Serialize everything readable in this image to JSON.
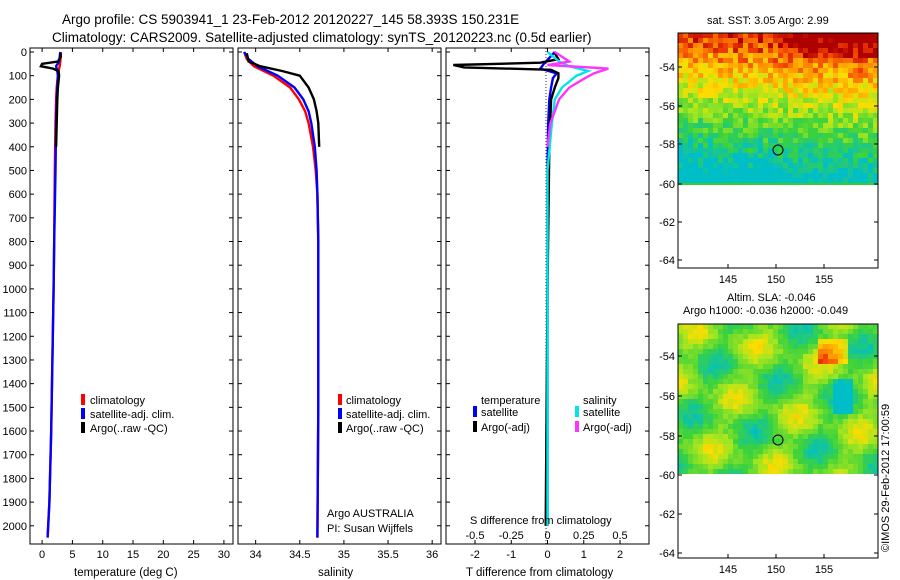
{
  "title": {
    "line1": "Argo profile: CS 5903941_1 23-Feb-2012 20120227_145 58.393S 150.231E",
    "line2": "Climatology: CARS2009. Satellite-adjusted climatology: synTS_20120223.nc (0.5d earlier)"
  },
  "colors": {
    "climatology": "#ff0000",
    "satellite": "#0000ff",
    "argo": "#000000",
    "sal_satellite": "#00e5e5",
    "sal_argo": "#ff33ff"
  },
  "depth_ticks": [
    "0",
    "100",
    "200",
    "300",
    "400",
    "500",
    "600",
    "700",
    "800",
    "900",
    "1000",
    "1100",
    "1200",
    "1300",
    "1400",
    "1500",
    "1600",
    "1700",
    "1800",
    "1900",
    "2000"
  ],
  "chart_data": [
    {
      "type": "line",
      "name": "temperature",
      "xlabel": "temperature (deg C)",
      "xlim": [
        -2,
        31.5
      ],
      "ylim": [
        2060,
        0
      ],
      "x_tick_labels": [
        "0",
        "5",
        "10",
        "15",
        "20",
        "25",
        "30"
      ],
      "legend": [
        "climatology",
        "satellite-adj. clim.",
        "Argo(..raw -QC)"
      ],
      "series": [
        {
          "name": "climatology",
          "color": "#ff0000",
          "depth": [
            0,
            40,
            60,
            80,
            100,
            150,
            200,
            300,
            500,
            800,
            1000,
            1300,
            1600,
            1900,
            2050
          ],
          "values": [
            3.1,
            3.0,
            2.9,
            2.7,
            2.6,
            2.4,
            2.3,
            2.2,
            2.1,
            2.0,
            1.9,
            1.7,
            1.5,
            1.2,
            0.9
          ]
        },
        {
          "name": "satellite-adj. clim.",
          "color": "#0000ff",
          "depth": [
            0,
            40,
            60,
            80,
            100,
            150,
            200,
            300,
            500,
            800,
            1000,
            1300,
            1600,
            1900,
            2050
          ],
          "values": [
            3.0,
            2.8,
            2.3,
            2.5,
            2.6,
            2.5,
            2.4,
            2.3,
            2.2,
            2.0,
            1.9,
            1.7,
            1.5,
            1.2,
            0.9
          ]
        },
        {
          "name": "Argo(..raw -QC)",
          "color": "#000000",
          "depth": [
            5,
            20,
            40,
            50,
            60,
            70,
            80,
            100,
            150,
            200,
            300,
            400
          ],
          "values": [
            3.0,
            3.1,
            2.6,
            0.0,
            -0.2,
            1.8,
            2.7,
            2.8,
            2.6,
            2.5,
            2.4,
            2.3
          ]
        }
      ]
    },
    {
      "type": "line",
      "name": "salinity",
      "xlabel": "salinity",
      "xlim": [
        33.8,
        36.1
      ],
      "ylim": [
        2060,
        0
      ],
      "x_tick_labels": [
        "34",
        "34.5",
        "35",
        "35.5",
        "36"
      ],
      "legend": [
        "climatology",
        "satellite-adj. clim.",
        "Argo(..raw -QC)"
      ],
      "annotation": [
        "Argo AUSTRALIA",
        "PI: Susan Wijffels"
      ],
      "series": [
        {
          "name": "climatology",
          "color": "#ff0000",
          "depth": [
            0,
            30,
            60,
            100,
            150,
            200,
            250,
            300,
            400,
            500,
            600,
            800,
            1000,
            1500,
            2050
          ],
          "values": [
            33.87,
            33.9,
            33.98,
            34.2,
            34.39,
            34.49,
            34.56,
            34.6,
            34.65,
            34.68,
            34.7,
            34.71,
            34.71,
            34.71,
            34.7
          ]
        },
        {
          "name": "satellite-adj. clim.",
          "color": "#0000ff",
          "depth": [
            0,
            30,
            60,
            100,
            150,
            200,
            250,
            300,
            400,
            500,
            600,
            800,
            1000,
            1500,
            2050
          ],
          "values": [
            33.87,
            33.92,
            34.02,
            34.25,
            34.44,
            34.54,
            34.6,
            34.63,
            34.67,
            34.69,
            34.7,
            34.71,
            34.71,
            34.71,
            34.7
          ]
        },
        {
          "name": "Argo(..raw -QC)",
          "color": "#000000",
          "depth": [
            5,
            40,
            60,
            80,
            100,
            150,
            200,
            250,
            300,
            400
          ],
          "values": [
            33.9,
            33.92,
            34.05,
            34.3,
            34.5,
            34.6,
            34.66,
            34.69,
            34.71,
            34.72
          ]
        }
      ]
    },
    {
      "type": "line",
      "name": "difference",
      "xlabel": "T difference from climatology",
      "xlabel_top": "S difference from climatology",
      "xlim_T": [
        -2.8,
        2.8
      ],
      "x_tick_labels_T": [
        "-2",
        "-1",
        "0",
        "1",
        "2"
      ],
      "x_tick_labels_S": [
        "-0.5",
        "-0.25",
        "0",
        "0.25",
        "0.5"
      ],
      "legend_titles": [
        "temperature",
        "salinity"
      ],
      "legend": [
        "satellite",
        "Argo(-adj)",
        "satellite",
        "Argo(-adj)"
      ],
      "series": [
        {
          "name": "temperature satellite",
          "color": "#0000ff",
          "depth": [
            0,
            50,
            70,
            90,
            110,
            150,
            200,
            300,
            500,
            1000,
            2000
          ],
          "values": [
            0.2,
            -0.1,
            -0.2,
            0.25,
            0.15,
            0.1,
            0.05,
            0.02,
            0.0,
            0.0,
            0.0
          ]
        },
        {
          "name": "temperature Argo(-adj)",
          "color": "#000000",
          "depth": [
            5,
            30,
            45,
            55,
            65,
            75,
            90,
            110,
            150,
            200,
            400,
            1000,
            2000
          ],
          "values": [
            0.2,
            0.3,
            -0.2,
            -2.6,
            -2.3,
            0.1,
            0.3,
            0.3,
            0.2,
            0.1,
            0.05,
            0.0,
            -0.05
          ]
        },
        {
          "name": "salinity satellite",
          "color": "#00e5e5",
          "depth": [
            0,
            40,
            60,
            80,
            100,
            150,
            200,
            300,
            500,
            1000,
            2000
          ],
          "values": [
            0.0,
            0.08,
            0.15,
            0.28,
            0.2,
            0.1,
            0.05,
            0.03,
            0.0,
            0.0,
            0.0
          ]
        },
        {
          "name": "salinity Argo(-adj)",
          "color": "#ff33ff",
          "depth": [
            0,
            40,
            55,
            70,
            90,
            110,
            150,
            200,
            250,
            300,
            400
          ],
          "values": [
            0.05,
            0.15,
            0.0,
            0.42,
            0.32,
            0.26,
            0.15,
            0.08,
            0.05,
            0.02,
            0.0
          ]
        }
      ]
    },
    {
      "type": "heatmap",
      "name": "sst-map",
      "title": "sat. SST: 3.05 Argo: 2.99",
      "x_tick_labels": [
        "145",
        "150",
        "155"
      ],
      "y_tick_labels": [
        "-54",
        "-56",
        "-58",
        "-60",
        "-62",
        "-64"
      ],
      "marker": {
        "lon": 150.231,
        "lat": -58.393
      }
    },
    {
      "type": "heatmap",
      "name": "sla-map",
      "title_line1": "Altim. SLA: -0.046",
      "title_line2": "Argo h1000: -0.036 h2000: -0.049",
      "x_tick_labels": [
        "145",
        "150",
        "155"
      ],
      "y_tick_labels": [
        "-54",
        "-56",
        "-58",
        "-60",
        "-62",
        "-64"
      ],
      "marker": {
        "lon": 150.231,
        "lat": -58.393
      }
    }
  ],
  "stamp": "©IMOS 29-Feb-2012 17:00:59"
}
